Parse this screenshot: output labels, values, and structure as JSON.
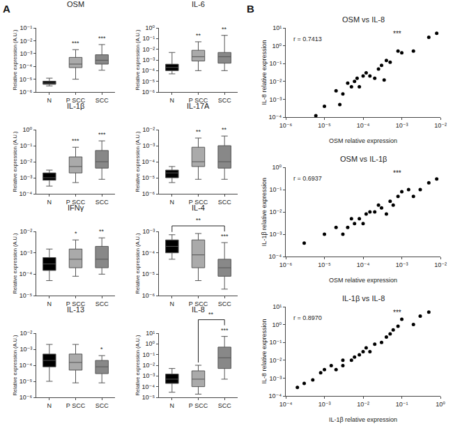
{
  "chart_data": [
    {
      "type": "box",
      "title": "OSM",
      "annotations": [
        "A"
      ],
      "categories": [
        "N",
        "P SCC",
        "SCC"
      ],
      "colors": [
        "#000000",
        "#aaaaaa",
        "#888888"
      ],
      "q1": [
        4e-06,
        8e-05,
        0.00015
      ],
      "median": [
        5e-06,
        0.00015,
        0.0003
      ],
      "q3": [
        7e-06,
        0.0005,
        0.0008
      ],
      "whislo": [
        3e-06,
        1e-05,
        5e-05
      ],
      "whishi": [
        1.2e-05,
        0.002,
        0.005
      ],
      "sig": [
        null,
        "***",
        "***"
      ],
      "ylabel": "Relative expression (A.U.)",
      "log": "y",
      "grid": false,
      "ylim": [
        1e-06,
        0.1
      ],
      "yticks": [
        {
          "value": 1e-06,
          "label": "10⁻⁶"
        },
        {
          "value": 1e-05,
          "label": "10⁻⁵"
        },
        {
          "value": 0.0001,
          "label": "10⁻⁴"
        },
        {
          "value": 0.001,
          "label": "10⁻³"
        },
        {
          "value": 0.01,
          "label": "10⁻²"
        },
        {
          "value": 0.1,
          "label": "10⁻¹"
        }
      ]
    },
    {
      "type": "box",
      "title": "IL-6",
      "categories": [
        "N",
        "P SCC",
        "SCC"
      ],
      "colors": [
        "#000000",
        "#aaaaaa",
        "#888888"
      ],
      "q1": [
        0.0001,
        0.0008,
        0.0005
      ],
      "median": [
        0.0002,
        0.002,
        0.002
      ],
      "q3": [
        0.0004,
        0.008,
        0.005
      ],
      "whislo": [
        5e-05,
        0.0001,
        0.0001
      ],
      "whishi": [
        0.005,
        0.05,
        0.2
      ],
      "sig": [
        null,
        "**",
        "**"
      ],
      "ylabel": "Relative expression (A.U.)",
      "log": "y",
      "grid": false,
      "ylim": [
        1e-06,
        1
      ],
      "yticks": [
        {
          "value": 1e-06,
          "label": "10⁻⁶"
        },
        {
          "value": 1e-05,
          "label": "10⁻⁵"
        },
        {
          "value": 0.0001,
          "label": "10⁻⁴"
        },
        {
          "value": 0.001,
          "label": "10⁻³"
        },
        {
          "value": 0.01,
          "label": "10⁻²"
        },
        {
          "value": 0.1,
          "label": "10⁻¹"
        },
        {
          "value": 1,
          "label": "10⁰"
        }
      ]
    },
    {
      "type": "box",
      "title": "IL-1β",
      "categories": [
        "N",
        "P SCC",
        "SCC"
      ],
      "colors": [
        "#000000",
        "#aaaaaa",
        "#888888"
      ],
      "q1": [
        0.0007,
        0.002,
        0.004
      ],
      "median": [
        0.001,
        0.005,
        0.01
      ],
      "q3": [
        0.002,
        0.02,
        0.05
      ],
      "whislo": [
        0.0003,
        0.0005,
        0.0008
      ],
      "whishi": [
        0.003,
        0.08,
        0.2
      ],
      "sig": [
        null,
        "***",
        "***"
      ],
      "ylabel": "Relative expression (A.U.)",
      "log": "y",
      "grid": false,
      "ylim": [
        0.0001,
        1
      ],
      "yticks": [
        {
          "value": 0.0001,
          "label": "10⁻⁴"
        },
        {
          "value": 0.001,
          "label": "10⁻³"
        },
        {
          "value": 0.01,
          "label": "10⁻²"
        },
        {
          "value": 0.1,
          "label": "10⁻¹"
        },
        {
          "value": 1,
          "label": "10⁰"
        }
      ]
    },
    {
      "type": "box",
      "title": "IL-17A",
      "categories": [
        "N",
        "P SCC",
        "SCC"
      ],
      "colors": [
        "#000000",
        "#aaaaaa",
        "#888888"
      ],
      "q1": [
        1e-05,
        5e-05,
        4e-05
      ],
      "median": [
        2e-05,
        0.0001,
        0.0001
      ],
      "q3": [
        3e-05,
        0.0008,
        0.001
      ],
      "whislo": [
        5e-06,
        8e-06,
        8e-06
      ],
      "whishi": [
        5e-05,
        0.003,
        0.004
      ],
      "sig": [
        null,
        "**",
        "**"
      ],
      "ylabel": "Relative expression (A.U.)",
      "log": "y",
      "grid": false,
      "ylim": [
        1e-06,
        0.01
      ],
      "yticks": [
        {
          "value": 1e-06,
          "label": "10⁻⁶"
        },
        {
          "value": 1e-05,
          "label": "10⁻⁵"
        },
        {
          "value": 0.0001,
          "label": "10⁻⁴"
        },
        {
          "value": 0.001,
          "label": "10⁻³"
        },
        {
          "value": 0.01,
          "label": "10⁻²"
        }
      ]
    },
    {
      "type": "box",
      "title": "IFNγ",
      "categories": [
        "N",
        "P SCC",
        "SCC"
      ],
      "colors": [
        "#000000",
        "#aaaaaa",
        "#888888"
      ],
      "q1": [
        0.00015,
        0.0002,
        0.0002
      ],
      "median": [
        0.0003,
        0.0005,
        0.0005
      ],
      "q3": [
        0.0006,
        0.0015,
        0.002
      ],
      "whislo": [
        5e-05,
        8e-05,
        0.0001
      ],
      "whishi": [
        0.0015,
        0.004,
        0.005
      ],
      "sig": [
        null,
        "*",
        "**"
      ],
      "ylabel": "Relative expression (A.U.)",
      "log": "y",
      "grid": false,
      "ylim": [
        1e-05,
        0.01
      ],
      "yticks": [
        {
          "value": 1e-05,
          "label": "10⁻⁵"
        },
        {
          "value": 0.0001,
          "label": "10⁻⁴"
        },
        {
          "value": 0.001,
          "label": "10⁻³"
        },
        {
          "value": 0.01,
          "label": "10⁻²"
        }
      ]
    },
    {
      "type": "box",
      "title": "IL-4",
      "categories": [
        "N",
        "P SCC",
        "SCC"
      ],
      "colors": [
        "#000000",
        "#aaaaaa",
        "#888888"
      ],
      "q1": [
        0.0001,
        2e-05,
        8e-06
      ],
      "median": [
        0.0002,
        8e-05,
        2e-05
      ],
      "q3": [
        0.0004,
        0.0004,
        5e-05
      ],
      "whislo": [
        5e-05,
        5e-06,
        2e-06
      ],
      "whishi": [
        0.0007,
        0.0008,
        0.0003
      ],
      "sig": [
        null,
        null,
        "***"
      ],
      "bracket": {
        "from": "N",
        "to": "SCC",
        "label": "**"
      },
      "ylabel": "Relative expression (A.U.)",
      "log": "y",
      "grid": false,
      "ylim": [
        1e-06,
        0.001
      ],
      "yticks": [
        {
          "value": 1e-06,
          "label": "10⁻⁶"
        },
        {
          "value": 1e-05,
          "label": "10⁻⁵"
        },
        {
          "value": 0.0001,
          "label": "10⁻⁴"
        },
        {
          "value": 0.001,
          "label": "10⁻³"
        }
      ]
    },
    {
      "type": "box",
      "title": "IL-13",
      "categories": [
        "N",
        "P SCC",
        "SCC"
      ],
      "colors": [
        "#000000",
        "#aaaaaa",
        "#888888"
      ],
      "q1": [
        8e-05,
        5e-05,
        3e-05
      ],
      "median": [
        0.0002,
        0.00015,
        8e-05
      ],
      "q3": [
        0.0005,
        0.0005,
        0.0002
      ],
      "whislo": [
        1e-05,
        8e-06,
        8e-06
      ],
      "whishi": [
        0.002,
        0.002,
        0.0004
      ],
      "sig": [
        null,
        null,
        "*"
      ],
      "ylabel": "Relative expression (A.U.)",
      "log": "y",
      "grid": false,
      "ylim": [
        1e-06,
        0.01
      ],
      "yticks": [
        {
          "value": 1e-06,
          "label": "10⁻⁶"
        },
        {
          "value": 1e-05,
          "label": "10⁻⁵"
        },
        {
          "value": 0.0001,
          "label": "10⁻⁴"
        },
        {
          "value": 0.001,
          "label": "10⁻³"
        },
        {
          "value": 0.01,
          "label": "10⁻²"
        }
      ]
    },
    {
      "type": "box",
      "title": "IL-8",
      "categories": [
        "N",
        "P SCC",
        "SCC"
      ],
      "colors": [
        "#000000",
        "#aaaaaa",
        "#888888"
      ],
      "q1": [
        0.0002,
        0.0001,
        0.005
      ],
      "median": [
        0.0005,
        0.0005,
        0.05
      ],
      "q3": [
        0.0015,
        0.003,
        0.5
      ],
      "whislo": [
        3e-05,
        2e-05,
        0.0005
      ],
      "whishi": [
        0.005,
        0.01,
        5
      ],
      "sig": [
        null,
        null,
        "***"
      ],
      "bracket": {
        "from": "P SCC",
        "to": "SCC",
        "label": "**"
      },
      "ylabel": "Relative expression (A.U.)",
      "log": "y",
      "grid": false,
      "ylim": [
        1e-05,
        10
      ],
      "yticks": [
        {
          "value": 1e-05,
          "label": "10⁻⁵"
        },
        {
          "value": 0.0001,
          "label": "10⁻⁴"
        },
        {
          "value": 0.001,
          "label": "10⁻³"
        },
        {
          "value": 0.01,
          "label": "10⁻²"
        },
        {
          "value": 0.1,
          "label": "10⁻¹"
        },
        {
          "value": 1,
          "label": "10⁰"
        },
        {
          "value": 10,
          "label": "10¹"
        }
      ]
    },
    {
      "type": "scatter",
      "title": "OSM vs IL-8",
      "annotations": [
        "B"
      ],
      "xlabel": "OSM relative expression",
      "ylabel": "IL-8 relative expression",
      "r_value": "r = 0.7413",
      "sig": "***",
      "color": "#000000",
      "log": true,
      "grid": false,
      "x": [
        6e-06,
        1e-05,
        2e-05,
        2.5e-05,
        3e-05,
        4e-05,
        5e-05,
        6e-05,
        7e-05,
        8e-05,
        0.0001,
        0.00012,
        0.00015,
        0.0002,
        0.00025,
        0.0003,
        0.00035,
        0.0004,
        0.0005,
        0.0008,
        0.001,
        0.002,
        0.005,
        0.008
      ],
      "values": [
        0.00012,
        0.0004,
        0.003,
        0.0005,
        0.002,
        0.008,
        0.005,
        0.01,
        0.015,
        0.005,
        0.02,
        0.03,
        0.02,
        0.015,
        0.05,
        0.08,
        0.012,
        0.15,
        0.12,
        0.5,
        0.4,
        0.5,
        3,
        5
      ],
      "xlim": [
        1e-06,
        0.01
      ],
      "xticks": [
        {
          "value": 1e-06,
          "label": "10⁻⁶"
        },
        {
          "value": 1e-05,
          "label": "10⁻⁵"
        },
        {
          "value": 0.0001,
          "label": "10⁻⁴"
        },
        {
          "value": 0.001,
          "label": "10⁻³"
        },
        {
          "value": 0.01,
          "label": "10⁻²"
        }
      ],
      "ylim": [
        0.0001,
        10
      ],
      "yticks": [
        {
          "value": 0.0001,
          "label": "10⁻⁴"
        },
        {
          "value": 0.001,
          "label": "10⁻³"
        },
        {
          "value": 0.01,
          "label": "10⁻²"
        },
        {
          "value": 0.1,
          "label": "10⁻¹"
        },
        {
          "value": 1,
          "label": "10⁰"
        },
        {
          "value": 10,
          "label": "10¹"
        }
      ]
    },
    {
      "type": "scatter",
      "title": "OSM vs IL-1β",
      "xlabel": "OSM relative expression",
      "ylabel": "IL-1β relative expression",
      "r_value": "r = 0.6937",
      "sig": "***",
      "color": "#000000",
      "log": true,
      "grid": false,
      "x": [
        3e-06,
        1e-05,
        2e-05,
        3e-05,
        4e-05,
        5e-05,
        6e-05,
        8e-05,
        0.0001,
        0.00012,
        0.00015,
        0.0002,
        0.00025,
        0.0003,
        0.0004,
        0.0005,
        0.0006,
        0.0008,
        0.001,
        0.0015,
        0.002,
        0.003,
        0.005,
        0.008
      ],
      "values": [
        0.0004,
        0.001,
        0.002,
        0.001,
        0.002,
        0.005,
        0.003,
        0.005,
        0.003,
        0.008,
        0.01,
        0.01,
        0.02,
        0.015,
        0.008,
        0.03,
        0.02,
        0.05,
        0.08,
        0.1,
        0.05,
        0.1,
        0.2,
        0.3
      ],
      "xlim": [
        1e-06,
        0.01
      ],
      "xticks": [
        {
          "value": 1e-06,
          "label": "10⁻⁶"
        },
        {
          "value": 1e-05,
          "label": "10⁻⁵"
        },
        {
          "value": 0.0001,
          "label": "10⁻⁴"
        },
        {
          "value": 0.001,
          "label": "10⁻³"
        },
        {
          "value": 0.01,
          "label": "10⁻²"
        }
      ],
      "ylim": [
        0.0001,
        1
      ],
      "yticks": [
        {
          "value": 0.0001,
          "label": "10⁻⁴"
        },
        {
          "value": 0.001,
          "label": "10⁻³"
        },
        {
          "value": 0.01,
          "label": "10⁻²"
        },
        {
          "value": 0.1,
          "label": "10⁻¹"
        },
        {
          "value": 1,
          "label": "10⁰"
        }
      ]
    },
    {
      "type": "scatter",
      "title": "IL-1β vs IL-8",
      "xlabel": "IL-1β relative expression",
      "ylabel": "IL-8 relative expression",
      "r_value": "r = 0.8970",
      "sig": "***",
      "color": "#000000",
      "log": true,
      "grid": false,
      "x": [
        0.0002,
        0.0003,
        0.0005,
        0.0008,
        0.001,
        0.0015,
        0.002,
        0.003,
        0.003,
        0.005,
        0.006,
        0.008,
        0.01,
        0.012,
        0.015,
        0.02,
        0.03,
        0.04,
        0.05,
        0.06,
        0.08,
        0.1,
        0.2,
        0.3,
        0.5
      ],
      "values": [
        0.0003,
        0.0005,
        0.0008,
        0.002,
        0.003,
        0.005,
        0.003,
        0.005,
        0.01,
        0.01,
        0.015,
        0.02,
        0.03,
        0.05,
        0.03,
        0.08,
        0.1,
        0.2,
        0.3,
        0.5,
        0.8,
        2,
        1,
        3,
        5
      ],
      "xlim": [
        0.0001,
        1
      ],
      "xticks": [
        {
          "value": 0.0001,
          "label": "10⁻⁴"
        },
        {
          "value": 0.001,
          "label": "10⁻³"
        },
        {
          "value": 0.01,
          "label": "10⁻²"
        },
        {
          "value": 0.1,
          "label": "10⁻¹"
        },
        {
          "value": 1,
          "label": "10⁰"
        }
      ],
      "ylim": [
        0.0001,
        10
      ],
      "yticks": [
        {
          "value": 0.0001,
          "label": "10⁻⁴"
        },
        {
          "value": 0.001,
          "label": "10⁻³"
        },
        {
          "value": 0.01,
          "label": "10⁻²"
        },
        {
          "value": 0.1,
          "label": "10⁻¹"
        },
        {
          "value": 1,
          "label": "10⁰"
        },
        {
          "value": 10,
          "label": "10¹"
        }
      ]
    }
  ]
}
